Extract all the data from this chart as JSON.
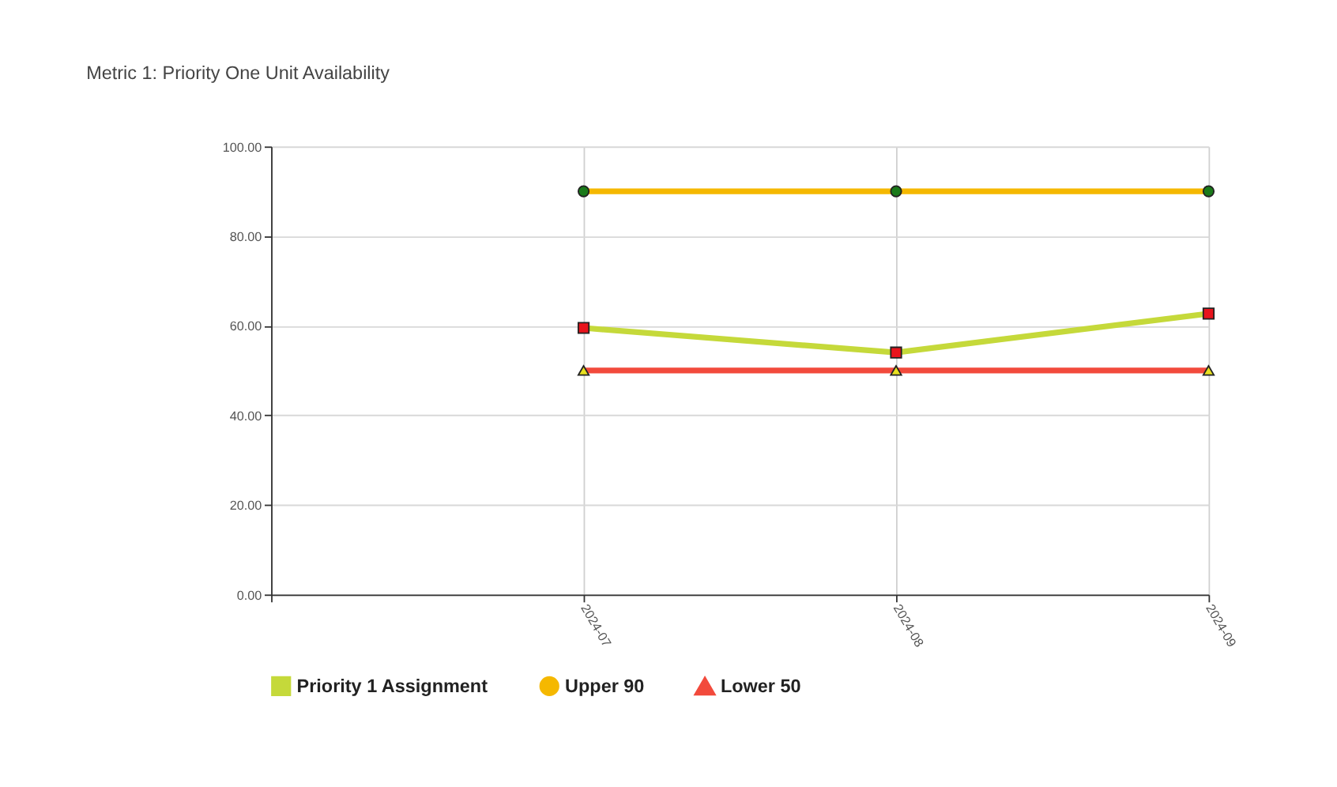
{
  "chart_data": {
    "type": "line",
    "title": "Metric 1: Priority One Unit Availability",
    "categories": [
      null,
      "2024-07",
      "2024-08",
      "2024-09"
    ],
    "series": [
      {
        "name": "Priority 1 Assignment",
        "color": "#c5d93a",
        "marker": "square",
        "colors": [
          null,
          "#e8141c",
          "#e8141c",
          "#e8141c"
        ],
        "values": [
          null,
          59.5,
          54,
          62.7
        ]
      },
      {
        "name": "Upper 90",
        "color": "#f5b800",
        "marker": "circle",
        "colors": [
          null,
          "#1a7a1a",
          "#1a7a1a",
          "#1a7a1a"
        ],
        "values": [
          null,
          90,
          90,
          90
        ]
      },
      {
        "name": "Lower 50",
        "color": "#f24a3c",
        "marker": "triangle",
        "colors": [
          null,
          "#e8e020",
          "#e8e020",
          "#e8e020"
        ],
        "values": [
          null,
          50,
          50,
          50
        ]
      }
    ],
    "ylim": [
      0,
      100
    ],
    "yticks": [
      {
        "value": 0,
        "label": "0.00"
      },
      {
        "value": 20,
        "label": "20.00"
      },
      {
        "value": 40,
        "label": "40.00"
      },
      {
        "value": 60,
        "label": "60.00"
      },
      {
        "value": 80,
        "label": "80.00"
      },
      {
        "value": 100,
        "label": "100.00"
      }
    ],
    "grid": true,
    "legend": "bottom",
    "line_style": "solid"
  }
}
